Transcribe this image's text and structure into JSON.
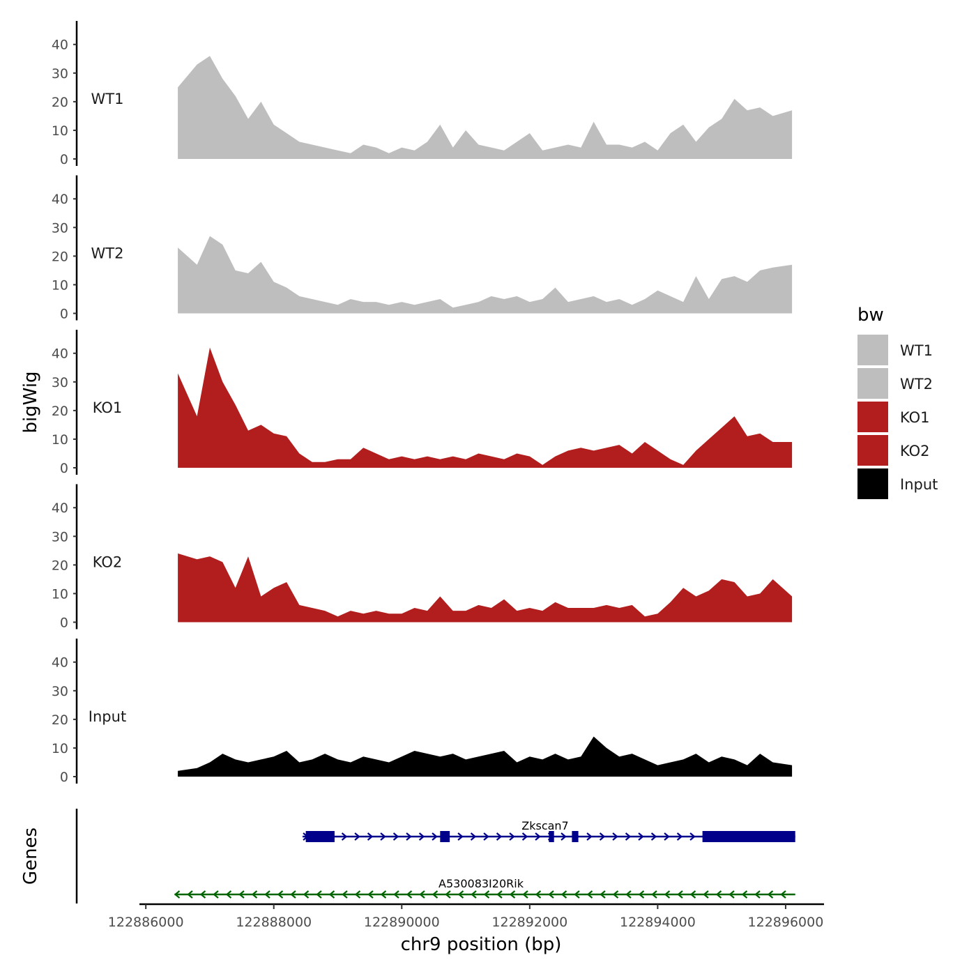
{
  "chart_data": {
    "type": "area",
    "layout": "stacked tracks",
    "xlabel": "chr9 position (bp)",
    "ylabel": "bigWig",
    "xlim": [
      122885900,
      122896600
    ],
    "ylim": [
      0,
      47
    ],
    "x_ticks": [
      122886000,
      122888000,
      122890000,
      122892000,
      122894000,
      122896000
    ],
    "y_ticks": [
      0,
      10,
      20,
      30,
      40
    ],
    "legend": {
      "title": "bw",
      "position": "right",
      "items": [
        {
          "label": "WT1",
          "color": "#bebebe"
        },
        {
          "label": "WT2",
          "color": "#bebebe"
        },
        {
          "label": "KO1",
          "color": "#b21e1e"
        },
        {
          "label": "KO2",
          "color": "#b21e1e"
        },
        {
          "label": "Input",
          "color": "#000000"
        }
      ]
    },
    "x": [
      122886500,
      122886800,
      122887000,
      122887200,
      122887400,
      122887600,
      122887800,
      122888000,
      122888200,
      122888400,
      122888600,
      122888800,
      122889000,
      122889200,
      122889400,
      122889600,
      122889800,
      122890000,
      122890200,
      122890400,
      122890600,
      122890800,
      122891000,
      122891200,
      122891400,
      122891600,
      122891800,
      122892000,
      122892200,
      122892400,
      122892600,
      122892800,
      122893000,
      122893200,
      122893400,
      122893600,
      122893800,
      122894000,
      122894200,
      122894400,
      122894600,
      122894800,
      122895000,
      122895200,
      122895400,
      122895600,
      122895800,
      122896100
    ],
    "series": [
      {
        "name": "WT1",
        "color": "#bebebe",
        "values": [
          25,
          33,
          36,
          28,
          22,
          14,
          20,
          12,
          9,
          6,
          5,
          4,
          3,
          2,
          5,
          4,
          2,
          4,
          3,
          6,
          12,
          4,
          10,
          5,
          4,
          3,
          6,
          9,
          3,
          4,
          5,
          4,
          13,
          5,
          5,
          4,
          6,
          3,
          9,
          12,
          6,
          11,
          14,
          21,
          17,
          18,
          15,
          17
        ]
      },
      {
        "name": "WT2",
        "color": "#bebebe",
        "values": [
          23,
          17,
          27,
          24,
          15,
          14,
          18,
          11,
          9,
          6,
          5,
          4,
          3,
          5,
          4,
          4,
          3,
          4,
          3,
          4,
          5,
          2,
          3,
          4,
          6,
          5,
          6,
          4,
          5,
          9,
          4,
          5,
          6,
          4,
          5,
          3,
          5,
          8,
          6,
          4,
          13,
          5,
          12,
          13,
          11,
          15,
          16,
          17
        ]
      },
      {
        "name": "KO1",
        "color": "#b21e1e",
        "values": [
          33,
          18,
          42,
          30,
          22,
          13,
          15,
          12,
          11,
          5,
          2,
          2,
          3,
          3,
          7,
          5,
          3,
          4,
          3,
          4,
          3,
          4,
          3,
          5,
          4,
          3,
          5,
          4,
          1,
          4,
          6,
          7,
          6,
          7,
          8,
          5,
          9,
          6,
          3,
          1,
          6,
          10,
          14,
          18,
          11,
          12,
          9,
          9
        ]
      },
      {
        "name": "KO2",
        "color": "#b21e1e",
        "values": [
          24,
          22,
          23,
          21,
          12,
          23,
          9,
          12,
          14,
          6,
          5,
          4,
          2,
          4,
          3,
          4,
          3,
          3,
          5,
          4,
          9,
          4,
          4,
          6,
          5,
          8,
          4,
          5,
          4,
          7,
          5,
          5,
          5,
          6,
          5,
          6,
          2,
          3,
          7,
          12,
          9,
          11,
          15,
          14,
          9,
          10,
          15,
          9
        ]
      },
      {
        "name": "Input",
        "color": "#000000",
        "values": [
          2,
          3,
          5,
          8,
          6,
          5,
          6,
          7,
          9,
          5,
          6,
          8,
          6,
          5,
          7,
          6,
          5,
          7,
          9,
          8,
          7,
          8,
          6,
          7,
          8,
          9,
          5,
          7,
          6,
          8,
          6,
          7,
          14,
          10,
          7,
          8,
          6,
          4,
          5,
          6,
          8,
          5,
          7,
          6,
          4,
          8,
          5,
          4
        ]
      }
    ],
    "genes": [
      {
        "name": "Zkscan7",
        "strand": "+",
        "color": "#00008b",
        "start": 122888450,
        "end": 122896150,
        "exons": [
          [
            122888500,
            122888950
          ],
          [
            122890600,
            122890750
          ],
          [
            122892300,
            122892380
          ],
          [
            122892660,
            122892760
          ],
          [
            122894700,
            122896150
          ]
        ]
      },
      {
        "name": "A530083I20Rik",
        "strand": "-",
        "color": "#006400",
        "start": 122886450,
        "end": 122896150,
        "exons": []
      }
    ],
    "genes_track_label": "Genes"
  }
}
